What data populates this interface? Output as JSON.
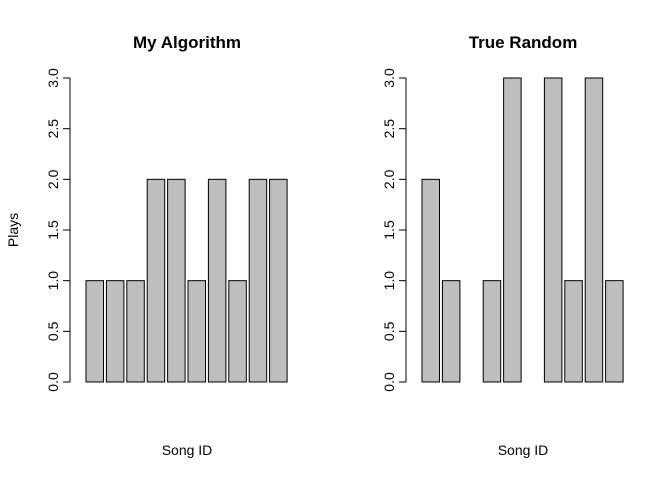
{
  "figure": {
    "bar_fill": "#bebebe",
    "bar_stroke": "#000000"
  },
  "chart_data": [
    {
      "type": "bar",
      "title": "My Algorithm",
      "xlabel": "Song ID",
      "ylabel": "Plays",
      "ylim": [
        0,
        3
      ],
      "yticks": [
        "0.0",
        "0.5",
        "1.0",
        "1.5",
        "2.0",
        "2.5",
        "3.0"
      ],
      "values": [
        1,
        1,
        1,
        2,
        2,
        1,
        2,
        1,
        2,
        2
      ],
      "grid": false,
      "legend": "none"
    },
    {
      "type": "bar",
      "title": "True Random",
      "xlabel": "Song ID",
      "ylabel": "",
      "ylim": [
        0,
        3
      ],
      "yticks": [
        "0.0",
        "0.5",
        "1.0",
        "1.5",
        "2.0",
        "2.5",
        "3.0"
      ],
      "values": [
        2,
        1,
        0,
        1,
        3,
        0,
        3,
        1,
        3,
        1
      ],
      "grid": false,
      "legend": "none"
    }
  ]
}
